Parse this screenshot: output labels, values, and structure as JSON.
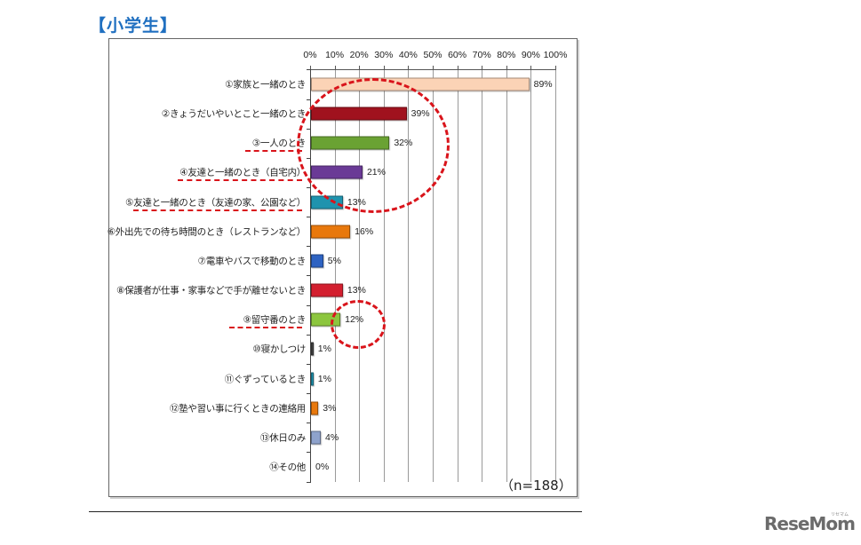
{
  "header": {
    "title": "【小学生】"
  },
  "chart_data": {
    "type": "bar",
    "orientation": "horizontal",
    "title": "【小学生】",
    "xlabel": "",
    "ylabel": "",
    "xlim": [
      0,
      100
    ],
    "x_ticks": [
      "0%",
      "10%",
      "20%",
      "30%",
      "40%",
      "50%",
      "60%",
      "70%",
      "80%",
      "90%",
      "100%"
    ],
    "grid": true,
    "note": "(n=188)",
    "categories": [
      "①家族と一緒のとき",
      "②きょうだいやいとこと一緒のとき",
      "③一人のとき",
      "④友達と一緒のとき（自宅内）",
      "⑤友達と一緒のとき（友達の家、公園など）",
      "⑥外出先での待ち時間のとき（レストランなど）",
      "⑦電車やバスで移動のとき",
      "⑧保護者が仕事・家事などで手が離せないとき",
      "⑨留守番のとき",
      "⑩寝かしつけ",
      "⑪ぐずっているとき",
      "⑫塾や習い事に行くときの連絡用",
      "⑬休日のみ",
      "⑭その他"
    ],
    "values": [
      89,
      39,
      32,
      21,
      13,
      16,
      5,
      13,
      12,
      1,
      1,
      3,
      4,
      0
    ],
    "value_labels": [
      "89%",
      "39%",
      "32%",
      "21%",
      "13%",
      "16%",
      "5%",
      "13%",
      "12%",
      "1%",
      "1%",
      "3%",
      "4%",
      "0%"
    ],
    "colors": [
      "#fbd3b6",
      "#a0121e",
      "#6aa233",
      "#6a3a96",
      "#1f93ae",
      "#e8780c",
      "#2e63c2",
      "#d31f2f",
      "#8cc63e",
      "#444444",
      "#1f93ae",
      "#e8780c",
      "#8ea2cc",
      "#cccccc"
    ],
    "annotations": {
      "underlined": [
        "③一人のとき",
        "④友達と一緒のとき（自宅内）",
        "⑤友達と一緒のとき（友達の家、公園など）",
        "⑨留守番のとき"
      ],
      "circled_groups": [
        [
          "②",
          "③",
          "④",
          "⑤"
        ],
        [
          "⑨"
        ]
      ],
      "annotation_color": "#d9141b"
    }
  },
  "footer": {
    "n_label": "（n=188）",
    "logo": "ReseMom",
    "logo_sub": "リセマム"
  }
}
